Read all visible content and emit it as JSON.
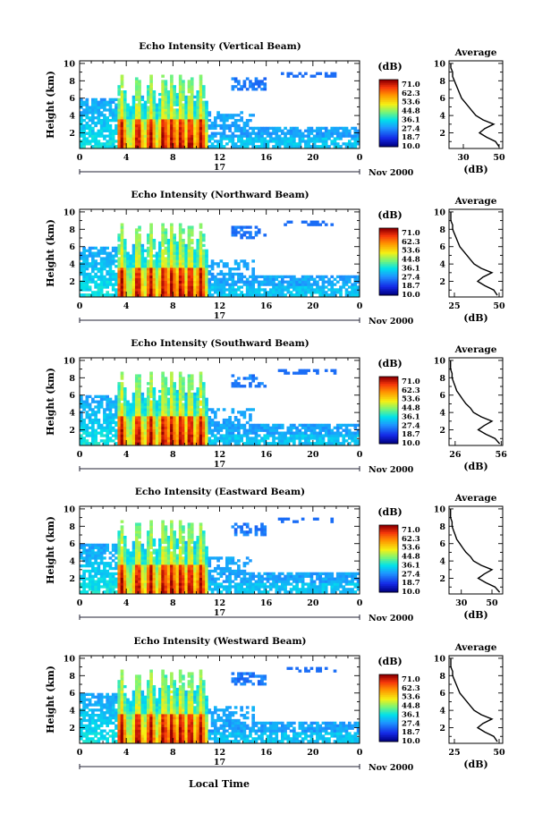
{
  "figure": {
    "x_axis_label": "Local Time",
    "date_day": "17",
    "date_month_year": "Nov 2000",
    "colorbar_title": "(dB)",
    "colorbar_ticks": [
      "71.0",
      "62.3",
      "53.6",
      "44.8",
      "36.1",
      "27.4",
      "18.7",
      "10.0"
    ],
    "profile_title": "Average",
    "profile_unit": "(dB)"
  },
  "chart_data": [
    {
      "type": "heatmap",
      "title": "Echo Intensity (Vertical Beam)",
      "ylabel": "Height (km)",
      "x_ticks": [
        "0",
        "4",
        "8",
        "12",
        "16",
        "20",
        "0"
      ],
      "y_ticks": [
        "2",
        "4",
        "6",
        "8",
        "10"
      ],
      "xlim": [
        0,
        24
      ],
      "ylim": [
        0.2,
        10.3
      ],
      "colorbar": {
        "label": "(dB)",
        "range": [
          10.0,
          71.0
        ]
      },
      "profile": {
        "title": "Average",
        "xlabel": "(dB)",
        "x_ticks": [
          "30",
          "50"
        ],
        "xlim": [
          22,
          52
        ],
        "heights": [
          0.4,
          1.0,
          1.5,
          2.0,
          2.5,
          3.0,
          3.5,
          4.0,
          4.5,
          5.0,
          5.5,
          6.0,
          6.5,
          7.0,
          7.5,
          8.0,
          8.5,
          9.0,
          9.5,
          10.0
        ],
        "values": [
          50,
          48,
          43,
          39,
          42,
          47,
          41,
          37,
          35,
          33,
          31,
          29,
          28,
          27,
          26,
          25,
          24,
          24,
          23,
          23
        ]
      }
    },
    {
      "type": "heatmap",
      "title": "Echo Intensity (Northward Beam)",
      "ylabel": "Height (km)",
      "x_ticks": [
        "0",
        "4",
        "8",
        "12",
        "16",
        "20",
        "0"
      ],
      "y_ticks": [
        "2",
        "4",
        "6",
        "8",
        "10"
      ],
      "xlim": [
        0,
        24
      ],
      "ylim": [
        0.2,
        10.3
      ],
      "colorbar": {
        "label": "(dB)",
        "range": [
          10.0,
          71.0
        ]
      },
      "profile": {
        "title": "Average",
        "xlabel": "(dB)",
        "x_ticks": [
          "25",
          "50"
        ],
        "xlim": [
          22,
          52
        ],
        "heights": [
          0.4,
          1.0,
          1.5,
          2.0,
          2.5,
          3.0,
          3.5,
          4.0,
          4.5,
          5.0,
          5.5,
          6.0,
          6.5,
          7.0,
          7.5,
          8.0,
          8.5,
          9.0,
          9.5,
          10.0
        ],
        "values": [
          49,
          47,
          42,
          38,
          41,
          46,
          40,
          36,
          34,
          32,
          30,
          28,
          27,
          26,
          25,
          24,
          24,
          23,
          23,
          23
        ]
      }
    },
    {
      "type": "heatmap",
      "title": "Echo Intensity (Southward Beam)",
      "ylabel": "Height (km)",
      "x_ticks": [
        "0",
        "4",
        "8",
        "12",
        "16",
        "20",
        "0"
      ],
      "y_ticks": [
        "2",
        "4",
        "6",
        "8",
        "10"
      ],
      "xlim": [
        0,
        24
      ],
      "ylim": [
        0.2,
        10.3
      ],
      "colorbar": {
        "label": "(dB)",
        "range": [
          10.0,
          71.0
        ]
      },
      "profile": {
        "title": "Average",
        "xlabel": "(dB)",
        "x_ticks": [
          "26",
          "56"
        ],
        "xlim": [
          22,
          57
        ],
        "heights": [
          0.4,
          1.0,
          1.5,
          2.0,
          2.5,
          3.0,
          3.5,
          4.0,
          4.5,
          5.0,
          5.5,
          6.0,
          6.5,
          7.0,
          7.5,
          8.0,
          8.5,
          9.0,
          9.5,
          10.0
        ],
        "values": [
          55,
          52,
          46,
          41,
          45,
          50,
          43,
          38,
          36,
          33,
          31,
          29,
          27,
          26,
          25,
          24,
          24,
          23,
          23,
          23
        ]
      }
    },
    {
      "type": "heatmap",
      "title": "Echo Intensity (Eastward Beam)",
      "ylabel": "Height (km)",
      "x_ticks": [
        "0",
        "4",
        "8",
        "12",
        "16",
        "20",
        "0"
      ],
      "y_ticks": [
        "2",
        "4",
        "6",
        "8",
        "10"
      ],
      "xlim": [
        0,
        24
      ],
      "ylim": [
        0.2,
        10.3
      ],
      "colorbar": {
        "label": "(dB)",
        "range": [
          10.0,
          71.0
        ]
      },
      "profile": {
        "title": "Average",
        "xlabel": "(dB)",
        "x_ticks": [
          "30",
          "50"
        ],
        "xlim": [
          22,
          57
        ],
        "heights": [
          0.4,
          1.0,
          1.5,
          2.0,
          2.5,
          3.0,
          3.5,
          4.0,
          4.5,
          5.0,
          5.5,
          6.0,
          6.5,
          7.0,
          7.5,
          8.0,
          8.5,
          9.0,
          9.5,
          10.0
        ],
        "values": [
          55,
          52,
          46,
          41,
          45,
          50,
          43,
          38,
          36,
          33,
          31,
          29,
          27,
          26,
          25,
          24,
          24,
          23,
          23,
          23
        ]
      }
    },
    {
      "type": "heatmap",
      "title": "Echo Intensity (Westward Beam)",
      "ylabel": "Height (km)",
      "x_ticks": [
        "0",
        "4",
        "8",
        "12",
        "16",
        "20",
        "0"
      ],
      "y_ticks": [
        "2",
        "4",
        "6",
        "8",
        "10"
      ],
      "xlim": [
        0,
        24
      ],
      "ylim": [
        0.2,
        10.3
      ],
      "colorbar": {
        "label": "(dB)",
        "range": [
          10.0,
          71.0
        ]
      },
      "profile": {
        "title": "Average",
        "xlabel": "(dB)",
        "x_ticks": [
          "25",
          "50"
        ],
        "xlim": [
          22,
          52
        ],
        "heights": [
          0.4,
          1.0,
          1.5,
          2.0,
          2.5,
          3.0,
          3.5,
          4.0,
          4.5,
          5.0,
          5.5,
          6.0,
          6.5,
          7.0,
          7.5,
          8.0,
          8.5,
          9.0,
          9.5,
          10.0
        ],
        "values": [
          49,
          47,
          42,
          38,
          41,
          46,
          40,
          36,
          34,
          32,
          30,
          28,
          27,
          26,
          25,
          24,
          24,
          23,
          23,
          23
        ]
      }
    }
  ]
}
